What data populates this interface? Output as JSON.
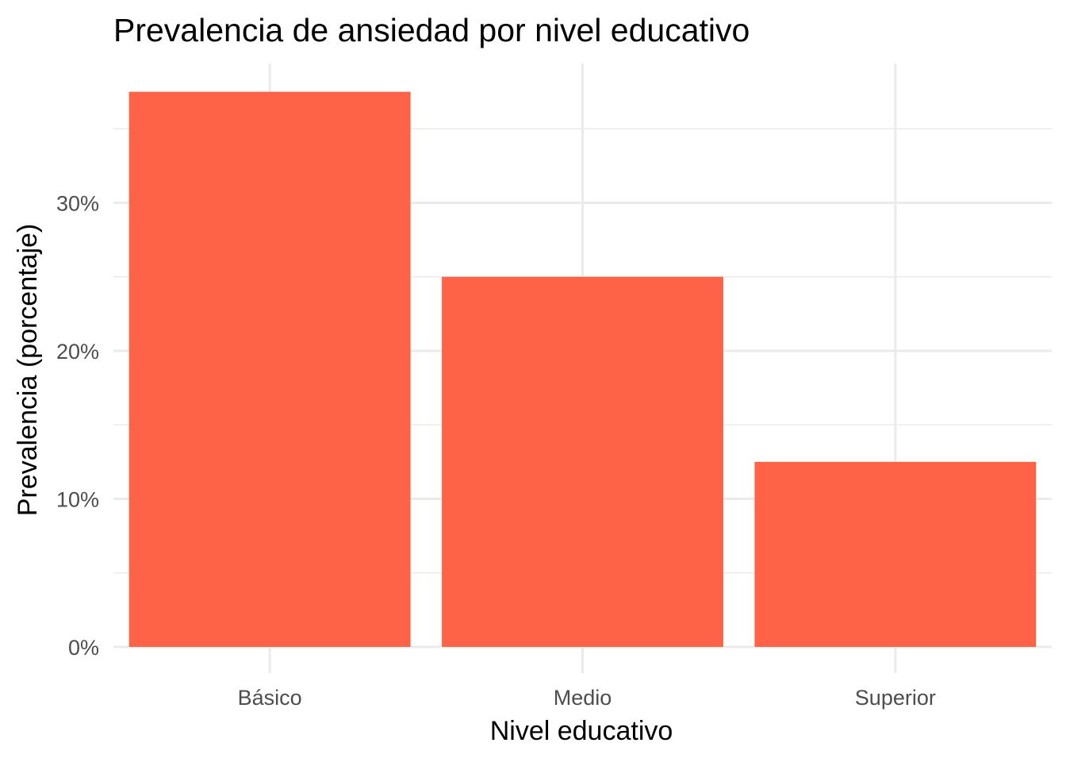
{
  "chart_data": {
    "type": "bar",
    "title": "Prevalencia de ansiedad por nivel educativo",
    "xlabel": "Nivel educativo",
    "ylabel": "Prevalencia (porcentaje)",
    "categories": [
      "Básico",
      "Medio",
      "Superior"
    ],
    "values": [
      37.5,
      25.0,
      12.5
    ],
    "value_unit": "%",
    "ylim": [
      0,
      39.4
    ],
    "yticks": [
      0,
      10,
      20,
      30
    ],
    "ytick_labels": [
      "0%",
      "10%",
      "20%",
      "30%"
    ],
    "grid": true,
    "bar_color": "#FF6347",
    "grid_color": "#EBEBEB",
    "legend": "none"
  }
}
